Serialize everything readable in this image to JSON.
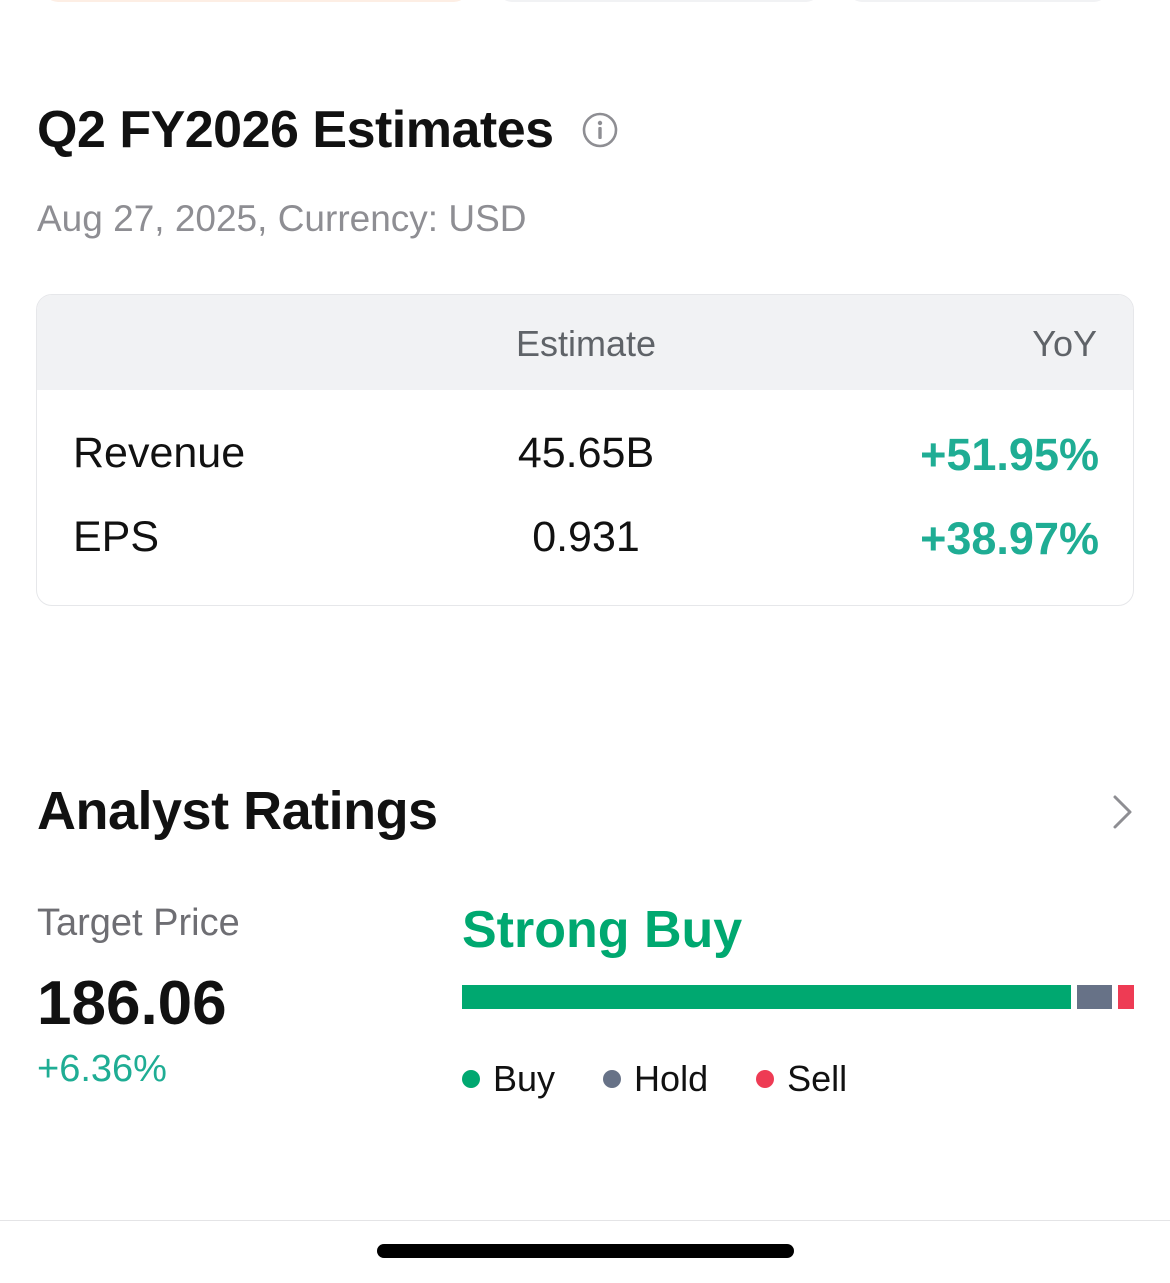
{
  "estimates": {
    "title": "Q2 FY2026 Estimates",
    "subtitle": "Aug 27, 2025, Currency: USD",
    "columns": {
      "estimate": "Estimate",
      "yoy": "YoY"
    },
    "rows": [
      {
        "label": "Revenue",
        "estimate": "45.65B",
        "yoy": "+51.95%"
      },
      {
        "label": "EPS",
        "estimate": "0.931",
        "yoy": "+38.97%"
      }
    ]
  },
  "analyst_ratings": {
    "title": "Analyst Ratings",
    "target_price_label": "Target Price",
    "target_price": "186.06",
    "target_price_change": "+6.36%",
    "consensus": "Strong Buy",
    "distribution": {
      "buy": 0.906,
      "hold": 0.052,
      "sell": 0.024
    },
    "legend": {
      "buy": "Buy",
      "hold": "Hold",
      "sell": "Sell"
    }
  },
  "colors": {
    "positive": "#1fad94",
    "buy": "#00a870",
    "hold": "#677287",
    "sell": "#ee3b54"
  },
  "icons": {
    "info": "info-circle-icon",
    "chevron": "chevron-right-icon"
  }
}
